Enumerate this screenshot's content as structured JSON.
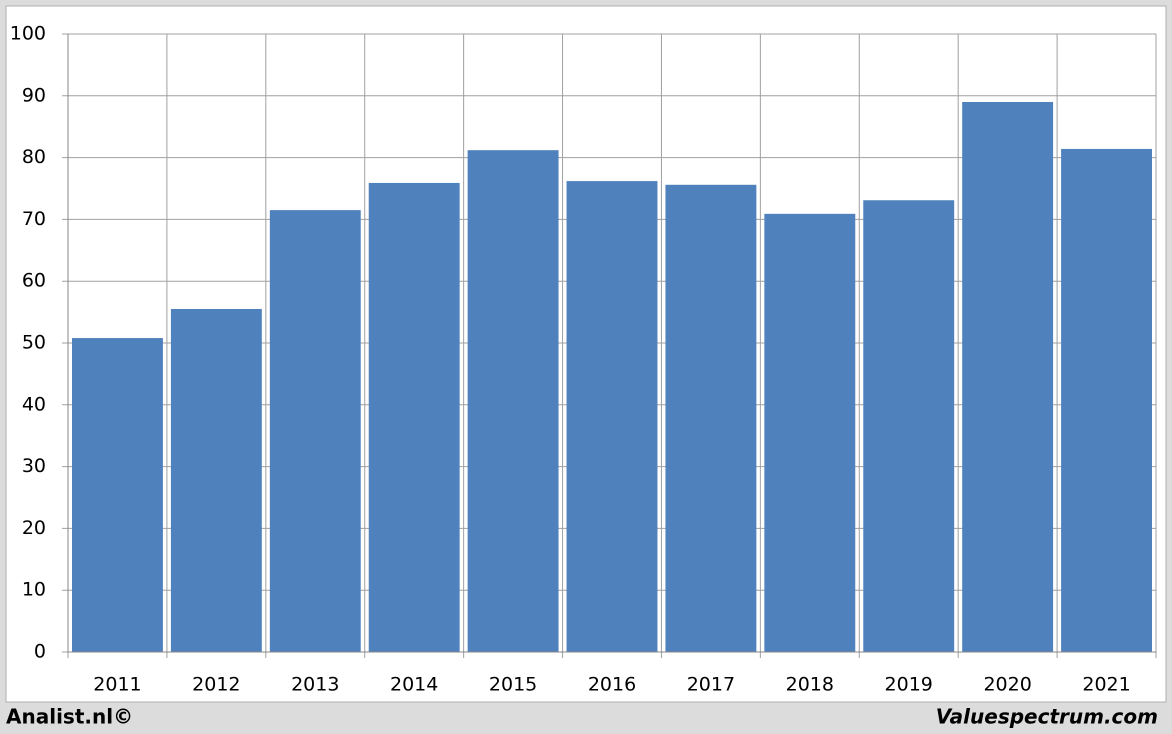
{
  "chart_data": {
    "type": "bar",
    "categories": [
      "2011",
      "2012",
      "2013",
      "2014",
      "2015",
      "2016",
      "2017",
      "2018",
      "2019",
      "2020",
      "2021"
    ],
    "values": [
      50.8,
      55.5,
      71.5,
      75.9,
      81.2,
      76.2,
      75.6,
      70.9,
      73.1,
      89.0,
      81.4
    ],
    "color": "#4f81bd",
    "ylim": [
      0,
      100
    ],
    "yticks": [
      0,
      10,
      20,
      30,
      40,
      50,
      60,
      70,
      80,
      90,
      100
    ],
    "grid": true,
    "footer_left": "Analist.nl©",
    "footer_right": "Valuespectrum.com"
  }
}
